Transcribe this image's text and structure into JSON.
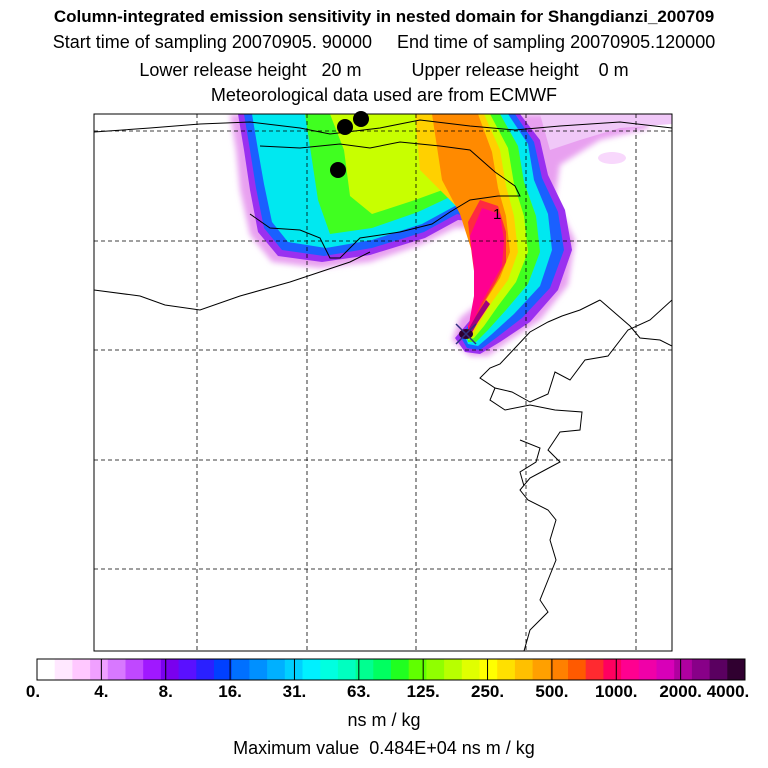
{
  "title": {
    "main": "Column-integrated emission sensitivity in nested domain for Shangdianzi_200709",
    "sampling_line": "Start time of sampling 20070905. 90000     End time of sampling 20070905.120000",
    "release_line": "Lower release height   20 m          Upper release height    0 m",
    "met_line": "Meteorological data used are from ECMWF"
  },
  "map": {
    "contour_label": "1",
    "release_point_marker": "x-mark",
    "station_markers": 3
  },
  "colorbar": {
    "tick_labels": [
      "0.",
      "4.",
      "8.",
      "16.",
      "31.",
      "63.",
      "125.",
      "250.",
      "500.",
      "1000.",
      "2000.",
      "4000."
    ],
    "colors": [
      "#ffffff",
      "#ffe8ff",
      "#ffc8ff",
      "#f0a0ff",
      "#d878ff",
      "#c048ff",
      "#a018ff",
      "#7a00ee",
      "#5a10ff",
      "#2a20ff",
      "#0040ff",
      "#0070ff",
      "#0090ff",
      "#00b0ff",
      "#00d0ff",
      "#00f0ff",
      "#00ffe0",
      "#00ffc0",
      "#00ff90",
      "#00ff60",
      "#20ff20",
      "#60ff00",
      "#90ff00",
      "#b8ff00",
      "#e0ff00",
      "#ffff00",
      "#ffe000",
      "#ffc000",
      "#ffa000",
      "#ff8000",
      "#ff5a00",
      "#ff2a30",
      "#ff0060",
      "#ff0090",
      "#f000a8",
      "#d800b8",
      "#b000a0",
      "#880088",
      "#5a0060",
      "#300030"
    ],
    "units": "ns m / kg"
  },
  "footer": {
    "max_value_line": "Maximum value  0.484E+04 ns m / kg"
  }
}
